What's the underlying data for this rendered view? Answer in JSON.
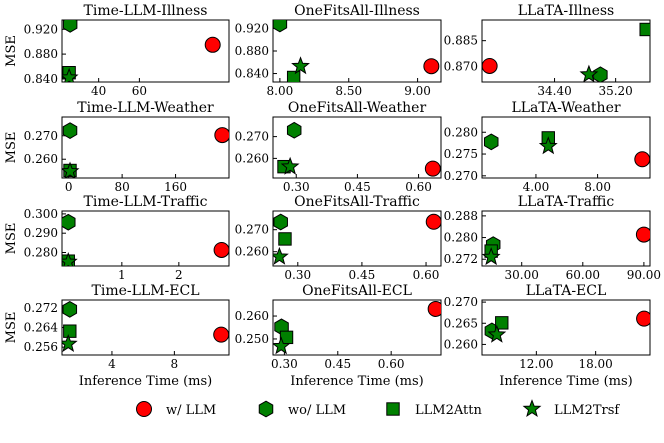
{
  "legend": [
    {
      "label": "w/ LLM",
      "marker": "circle",
      "color": "#ff0000"
    },
    {
      "label": "wo/ LLM",
      "marker": "hexagon",
      "color": "#008000"
    },
    {
      "label": "LLM2Attn",
      "marker": "square",
      "color": "#008000"
    },
    {
      "label": "LLM2Trsf",
      "marker": "star",
      "color": "#008000"
    }
  ],
  "xlabel": "Inference Time (ms)",
  "ylabel": "MSE",
  "chart_data": [
    {
      "type": "scatter",
      "title": "Time-LLM-Illness",
      "xlim": [
        22,
        104
      ],
      "ylim": [
        0.835,
        0.935
      ],
      "xticks": [
        {
          "v": 40,
          "label": "40"
        },
        {
          "v": 60,
          "label": "60"
        }
      ],
      "yticks": [
        {
          "v": 0.84,
          "label": "0.840"
        },
        {
          "v": 0.88,
          "label": "0.880"
        },
        {
          "v": 0.92,
          "label": "0.920"
        }
      ],
      "points": {
        "w/ LLM": [
          96,
          0.895
        ],
        "wo/ LLM": [
          26,
          0.928
        ],
        "LLM2Attn": [
          25.5,
          0.85
        ],
        "LLM2Trsf": [
          25.5,
          0.842
        ]
      }
    },
    {
      "type": "scatter",
      "title": "OneFitsAll-Illness",
      "xlim": [
        7.95,
        9.17
      ],
      "ylim": [
        0.825,
        0.935
      ],
      "xticks": [
        {
          "v": 8.0,
          "label": "8.00"
        },
        {
          "v": 8.5,
          "label": "8.50"
        },
        {
          "v": 9.0,
          "label": "9.00"
        }
      ],
      "yticks": [
        {
          "v": 0.84,
          "label": "0.840"
        },
        {
          "v": 0.88,
          "label": "0.880"
        },
        {
          "v": 0.92,
          "label": "0.920"
        }
      ],
      "points": {
        "w/ LLM": [
          9.1,
          0.853
        ],
        "wo/ LLM": [
          8.0,
          0.928
        ],
        "LLM2Attn": [
          8.1,
          0.833
        ],
        "LLM2Trsf": [
          8.15,
          0.853
        ]
      }
    },
    {
      "type": "scatter",
      "title": "LLaTA-Illness",
      "xlim": [
        33.45,
        35.65
      ],
      "ylim": [
        0.861,
        0.897
      ],
      "xticks": [
        {
          "v": 34.4,
          "label": "34.40"
        },
        {
          "v": 35.2,
          "label": "35.20"
        }
      ],
      "yticks": [
        {
          "v": 0.87,
          "label": "0.870"
        },
        {
          "v": 0.885,
          "label": "0.885"
        }
      ],
      "points": {
        "w/ LLM": [
          33.55,
          0.8703
        ],
        "wo/ LLM": [
          35.0,
          0.8652
        ],
        "LLM2Attn": [
          35.6,
          0.8915
        ],
        "LLM2Trsf": [
          34.85,
          0.8653
        ]
      }
    },
    {
      "type": "scatter",
      "title": "Time-LLM-Weather",
      "xlim": [
        -10,
        240
      ],
      "ylim": [
        0.252,
        0.278
      ],
      "xticks": [
        {
          "v": 0,
          "label": "0"
        },
        {
          "v": 80,
          "label": "80"
        },
        {
          "v": 160,
          "label": "160"
        }
      ],
      "yticks": [
        {
          "v": 0.26,
          "label": "0.260"
        },
        {
          "v": 0.27,
          "label": "0.270"
        }
      ],
      "points": {
        "w/ LLM": [
          230,
          0.2703
        ],
        "wo/ LLM": [
          2,
          0.2722
        ],
        "LLM2Attn": [
          2,
          0.2552
        ],
        "LLM2Trsf": [
          2,
          0.2548
        ]
      }
    },
    {
      "type": "scatter",
      "title": "OneFitsAll-Weather",
      "xlim": [
        0.243,
        0.655
      ],
      "ylim": [
        0.251,
        0.279
      ],
      "xticks": [
        {
          "v": 0.3,
          "label": "0.30"
        },
        {
          "v": 0.45,
          "label": "0.45"
        },
        {
          "v": 0.6,
          "label": "0.60"
        }
      ],
      "yticks": [
        {
          "v": 0.26,
          "label": "0.260"
        },
        {
          "v": 0.27,
          "label": "0.270"
        }
      ],
      "points": {
        "w/ LLM": [
          0.635,
          0.2553
        ],
        "wo/ LLM": [
          0.295,
          0.2729
        ],
        "LLM2Attn": [
          0.27,
          0.2562
        ],
        "LLM2Trsf": [
          0.285,
          0.2562
        ]
      }
    },
    {
      "type": "scatter",
      "title": "LLaTA-Weather",
      "xlim": [
        0.5,
        11.4
      ],
      "ylim": [
        0.2695,
        0.2835
      ],
      "xticks": [
        {
          "v": 4,
          "label": "4.00"
        },
        {
          "v": 8,
          "label": "8.00"
        }
      ],
      "yticks": [
        {
          "v": 0.27,
          "label": "0.270"
        },
        {
          "v": 0.275,
          "label": "0.275"
        },
        {
          "v": 0.28,
          "label": "0.280"
        }
      ],
      "points": {
        "w/ LLM": [
          10.9,
          0.2738
        ],
        "wo/ LLM": [
          1.1,
          0.2778
        ],
        "LLM2Attn": [
          4.8,
          0.2787
        ],
        "LLM2Trsf": [
          4.8,
          0.2768
        ]
      }
    },
    {
      "type": "scatter",
      "title": "Time-LLM-Traffic",
      "xlim": [
        -0.05,
        2.88
      ],
      "ylim": [
        0.273,
        0.3015
      ],
      "xticks": [
        {
          "v": 1,
          "label": "1"
        },
        {
          "v": 2,
          "label": "2"
        }
      ],
      "yticks": [
        {
          "v": 0.28,
          "label": "0.280"
        },
        {
          "v": 0.29,
          "label": "0.290"
        },
        {
          "v": 0.3,
          "label": "0.300"
        }
      ],
      "points": {
        "w/ LLM": [
          2.75,
          0.2813
        ],
        "wo/ LLM": [
          0.06,
          0.2957
        ],
        "LLM2Attn": [
          0.06,
          0.2755
        ],
        "LLM2Trsf": [
          0.06,
          0.2751
        ]
      }
    },
    {
      "type": "scatter",
      "title": "OneFitsAll-Traffic",
      "xlim": [
        0.242,
        0.635
      ],
      "ylim": [
        0.2535,
        0.2785
      ],
      "xticks": [
        {
          "v": 0.3,
          "label": "0.30"
        },
        {
          "v": 0.45,
          "label": "0.45"
        },
        {
          "v": 0.6,
          "label": "0.60"
        }
      ],
      "yticks": [
        {
          "v": 0.26,
          "label": "0.260"
        },
        {
          "v": 0.27,
          "label": "0.270"
        }
      ],
      "points": {
        "w/ LLM": [
          0.618,
          0.2736
        ],
        "wo/ LLM": [
          0.26,
          0.2735
        ],
        "LLM2Attn": [
          0.27,
          0.2658
        ],
        "LLM2Trsf": [
          0.257,
          0.2577
        ]
      }
    },
    {
      "type": "scatter",
      "title": "LLaTA-Traffic",
      "xlim": [
        10.5,
        93
      ],
      "ylim": [
        0.2695,
        0.2898
      ],
      "xticks": [
        {
          "v": 30,
          "label": "30.00"
        },
        {
          "v": 60,
          "label": "60.00"
        },
        {
          "v": 90,
          "label": "90.00"
        }
      ],
      "yticks": [
        {
          "v": 0.272,
          "label": "0.272"
        },
        {
          "v": 0.28,
          "label": "0.280"
        },
        {
          "v": 0.288,
          "label": "0.288"
        }
      ],
      "points": {
        "w/ LLM": [
          90,
          0.2811
        ],
        "wo/ LLM": [
          16,
          0.2774
        ],
        "LLM2Attn": [
          15,
          0.275
        ],
        "LLM2Trsf": [
          15,
          0.2728
        ]
      }
    },
    {
      "type": "scatter",
      "title": "Time-LLM-ECL",
      "xlim": [
        0.8,
        11.5
      ],
      "ylim": [
        0.2528,
        0.2752
      ],
      "xticks": [
        {
          "v": 4,
          "label": "4"
        },
        {
          "v": 8,
          "label": "8"
        }
      ],
      "yticks": [
        {
          "v": 0.256,
          "label": "0.256"
        },
        {
          "v": 0.264,
          "label": "0.264"
        },
        {
          "v": 0.272,
          "label": "0.272"
        }
      ],
      "points": {
        "w/ LLM": [
          11.0,
          0.2611
        ],
        "wo/ LLM": [
          1.3,
          0.2714
        ],
        "LLM2Attn": [
          1.3,
          0.2625
        ],
        "LLM2Trsf": [
          1.2,
          0.2573
        ]
      }
    },
    {
      "type": "scatter",
      "title": "OneFitsAll-ECL",
      "xlim": [
        0.268,
        0.74
      ],
      "ylim": [
        0.243,
        0.267
      ],
      "xticks": [
        {
          "v": 0.3,
          "label": "0.30"
        },
        {
          "v": 0.45,
          "label": "0.45"
        },
        {
          "v": 0.6,
          "label": "0.60"
        }
      ],
      "yticks": [
        {
          "v": 0.25,
          "label": "0.250"
        },
        {
          "v": 0.26,
          "label": "0.260"
        }
      ],
      "points": {
        "w/ LLM": [
          0.725,
          0.2631
        ],
        "wo/ LLM": [
          0.292,
          0.2553
        ],
        "LLM2Attn": [
          0.306,
          0.2507
        ],
        "LLM2Trsf": [
          0.291,
          0.2468
        ]
      }
    },
    {
      "type": "scatter",
      "title": "LLaTA-ECL",
      "xlim": [
        6.5,
        23.5
      ],
      "ylim": [
        0.2575,
        0.2705
      ],
      "xticks": [
        {
          "v": 12,
          "label": "12.00"
        },
        {
          "v": 18,
          "label": "18.00"
        }
      ],
      "yticks": [
        {
          "v": 0.26,
          "label": "0.260"
        },
        {
          "v": 0.265,
          "label": "0.265"
        },
        {
          "v": 0.27,
          "label": "0.270"
        }
      ],
      "points": {
        "w/ LLM": [
          22.9,
          0.2661
        ],
        "wo/ LLM": [
          7.5,
          0.2632
        ],
        "LLM2Attn": [
          8.5,
          0.2651
        ],
        "LLM2Trsf": [
          8.0,
          0.2623
        ]
      }
    }
  ]
}
